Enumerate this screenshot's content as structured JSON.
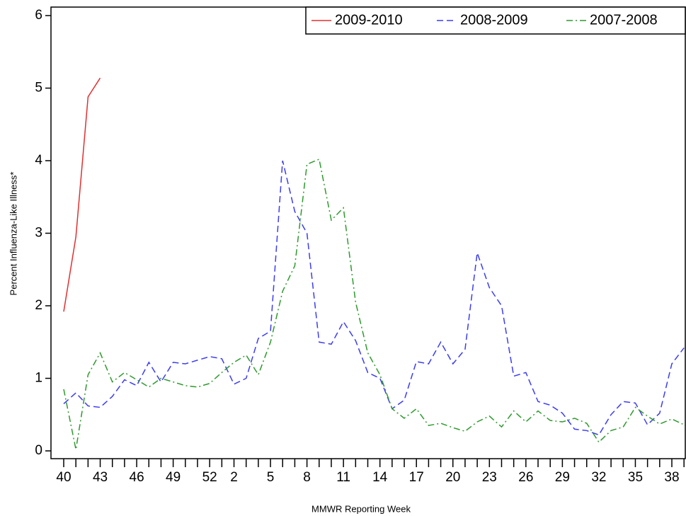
{
  "chart_data": {
    "type": "line",
    "xlabel": "MMWR Reporting Week",
    "ylabel": "Percent Influenza-Like Illness*",
    "categories": [
      "40",
      null,
      null,
      "43",
      null,
      null,
      "46",
      null,
      null,
      "49",
      null,
      null,
      "52",
      null,
      "2",
      null,
      null,
      "5",
      null,
      null,
      "8",
      null,
      null,
      "11",
      null,
      null,
      "14",
      null,
      null,
      "17",
      null,
      null,
      "20",
      null,
      null,
      "23",
      null,
      null,
      "26",
      null,
      null,
      "29",
      null,
      null,
      "32",
      null,
      null,
      "35",
      null,
      null,
      "38",
      null
    ],
    "ylim": [
      0,
      6
    ],
    "yticks": [
      0,
      1,
      2,
      3,
      4,
      5,
      6
    ],
    "legend": "top-right",
    "series": [
      {
        "name": "2009-2010",
        "color": "#e03030",
        "dash": "solid",
        "values": [
          1.92,
          2.95,
          4.88,
          5.14,
          null,
          null,
          null,
          null,
          null,
          null,
          null,
          null,
          null,
          null,
          null,
          null,
          null,
          null,
          null,
          null,
          null,
          null,
          null,
          null,
          null,
          null,
          null,
          null,
          null,
          null,
          null,
          null,
          null,
          null,
          null,
          null,
          null,
          null,
          null,
          null,
          null,
          null,
          null,
          null,
          null,
          null,
          null,
          null,
          null,
          null,
          null,
          null
        ]
      },
      {
        "name": "2008-2009",
        "color": "#3c3cf0",
        "dash": "dashed",
        "values": [
          0.65,
          0.8,
          0.62,
          0.6,
          0.75,
          0.98,
          0.9,
          1.22,
          0.95,
          1.22,
          1.2,
          1.25,
          1.3,
          1.27,
          0.92,
          1.0,
          1.55,
          1.65,
          4.0,
          3.3,
          3.0,
          1.5,
          1.47,
          1.78,
          1.52,
          1.08,
          1.0,
          0.58,
          0.7,
          1.23,
          1.2,
          1.5,
          1.2,
          1.4,
          2.73,
          2.25,
          2.0,
          1.03,
          1.08,
          0.68,
          0.63,
          0.52,
          0.3,
          0.28,
          0.22,
          0.5,
          0.68,
          0.66,
          0.36,
          0.52,
          1.2,
          1.42
        ]
      },
      {
        "name": "2007-2008",
        "color": "#2e9a2e",
        "dash": "dashdot",
        "values": [
          0.85,
          0.02,
          1.05,
          1.35,
          0.95,
          1.08,
          0.98,
          0.88,
          1.0,
          0.95,
          0.9,
          0.88,
          0.93,
          1.08,
          1.22,
          1.32,
          1.05,
          1.5,
          2.2,
          2.55,
          3.95,
          4.02,
          3.18,
          3.35,
          2.05,
          1.35,
          1.05,
          0.58,
          0.45,
          0.58,
          0.35,
          0.38,
          0.32,
          0.27,
          0.4,
          0.48,
          0.33,
          0.55,
          0.4,
          0.55,
          0.42,
          0.4,
          0.45,
          0.38,
          0.12,
          0.28,
          0.33,
          0.6,
          0.48,
          0.37,
          0.44,
          0.36
        ]
      }
    ]
  }
}
